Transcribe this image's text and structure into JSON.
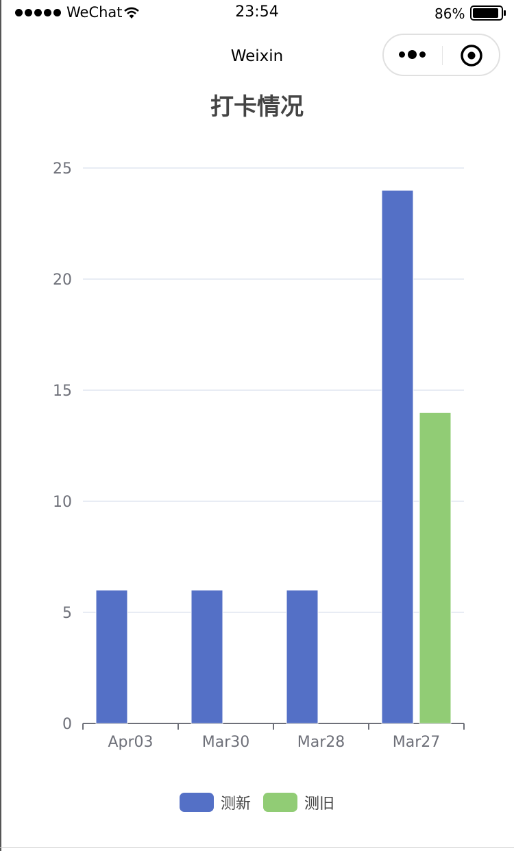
{
  "status_bar": {
    "carrier": "WeChat",
    "time": "23:54",
    "battery": "86%"
  },
  "nav": {
    "title": "Weixin"
  },
  "chart_data": {
    "type": "bar",
    "title": "打卡情况",
    "categories": [
      "Apr03",
      "Mar30",
      "Mar28",
      "Mar27"
    ],
    "series": [
      {
        "name": "测新",
        "values": [
          6,
          6,
          6,
          24
        ],
        "color": "#5470c6"
      },
      {
        "name": "测旧",
        "values": [
          0,
          0,
          0,
          14
        ],
        "color": "#91cc75"
      }
    ],
    "ylim": [
      0,
      25
    ],
    "yticks": [
      0,
      5,
      10,
      15,
      20,
      25
    ],
    "grid": true,
    "legend_position": "bottom",
    "xlabel": "",
    "ylabel": ""
  }
}
